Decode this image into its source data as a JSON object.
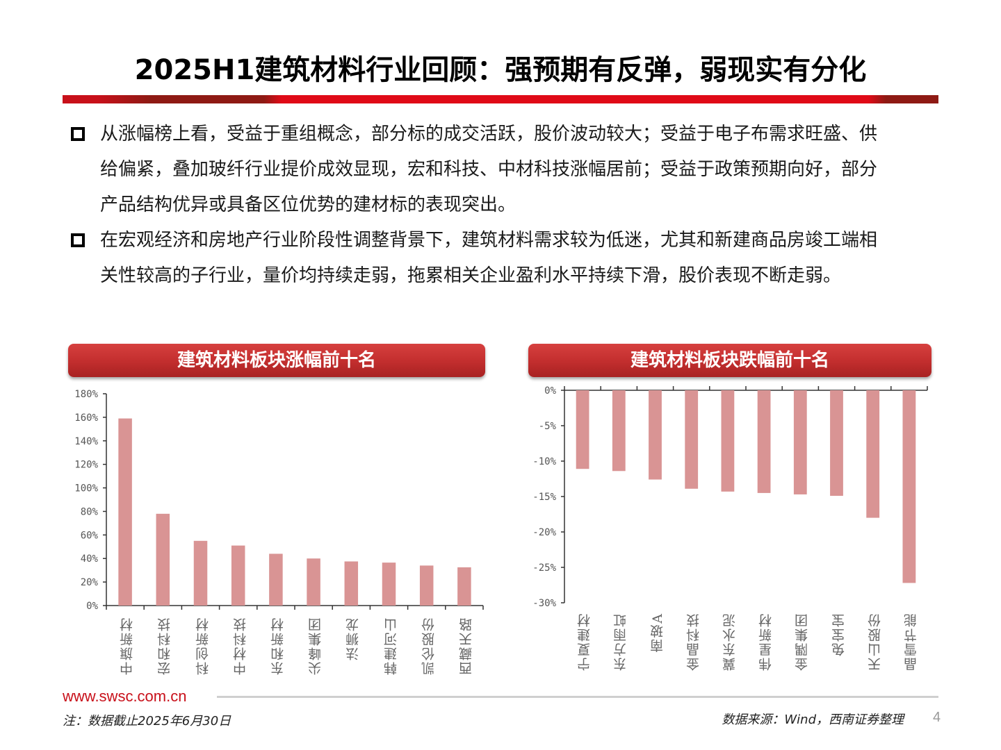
{
  "page": {
    "title": "2025H1建筑材料行业回顾：强预期有反弹，弱现实有分化",
    "bullets": [
      {
        "lines": [
          "从涨幅榜上看，受益于重组概念，部分标的成交活跃，股价波动较大；受益于电子布需求旺盛、供",
          "给偏紧，叠加玻纤行业提价成效显现，宏和科技、中材科技涨幅居前；受益于政策预期向好，部分",
          "产品结构优异或具备区位优势的建材标的表现突出。"
        ]
      },
      {
        "lines": [
          "在宏观经济和房地产行业阶段性调整背景下，建筑材料需求较为低迷，尤其和新建商品房竣工端相",
          "关性较高的子行业，量价均持续走弱，拖累相关企业盈利水平持续下滑，股价表现不断走弱。"
        ]
      }
    ],
    "footer": {
      "url": "www.swsc.com.cn",
      "note": "注：数据截止2025年6月30日",
      "source": "数据来源：Wind，西南证券整理",
      "page_number": "4"
    },
    "colors": {
      "brand_red": "#c8101a",
      "bar_fill": "#d99494",
      "banner_red": "#c42f2f"
    }
  },
  "chart_data": [
    {
      "type": "bar",
      "title": "建筑材料板块涨幅前十名",
      "categories": [
        "中旗新材",
        "宏和科技",
        "科创新材",
        "中材科技",
        "东和新材",
        "尖峰集团",
        "法狮龙",
        "韩建河山",
        "凯伦股份",
        "西藏天路"
      ],
      "values": [
        159,
        78,
        55,
        51,
        44,
        40,
        37.5,
        36.5,
        34,
        32.5
      ],
      "unit": "%",
      "xlabel": "",
      "ylabel": "",
      "ylim": [
        0,
        180
      ],
      "yticks": [
        "0%",
        "20%",
        "40%",
        "60%",
        "80%",
        "100%",
        "120%",
        "140%",
        "160%",
        "180%"
      ],
      "grid": false,
      "legend": null
    },
    {
      "type": "bar",
      "title": "建筑材料板块跌幅前十名",
      "categories": [
        "宁夏建材",
        "东方雨虹",
        "南玻A",
        "金晶科技",
        "冀东水泥",
        "伟星新材",
        "金隅集团",
        "兔宝宝",
        "天山股份",
        "晶雪节能"
      ],
      "values": [
        -11.1,
        -11.4,
        -12.6,
        -13.9,
        -14.3,
        -14.5,
        -14.7,
        -14.9,
        -18.0,
        -27.2
      ],
      "unit": "%",
      "xlabel": "",
      "ylabel": "",
      "ylim": [
        -30,
        0
      ],
      "yticks": [
        "0%",
        "-5%",
        "-10%",
        "-15%",
        "-20%",
        "-25%",
        "-30%"
      ],
      "grid": false,
      "legend": null
    }
  ]
}
